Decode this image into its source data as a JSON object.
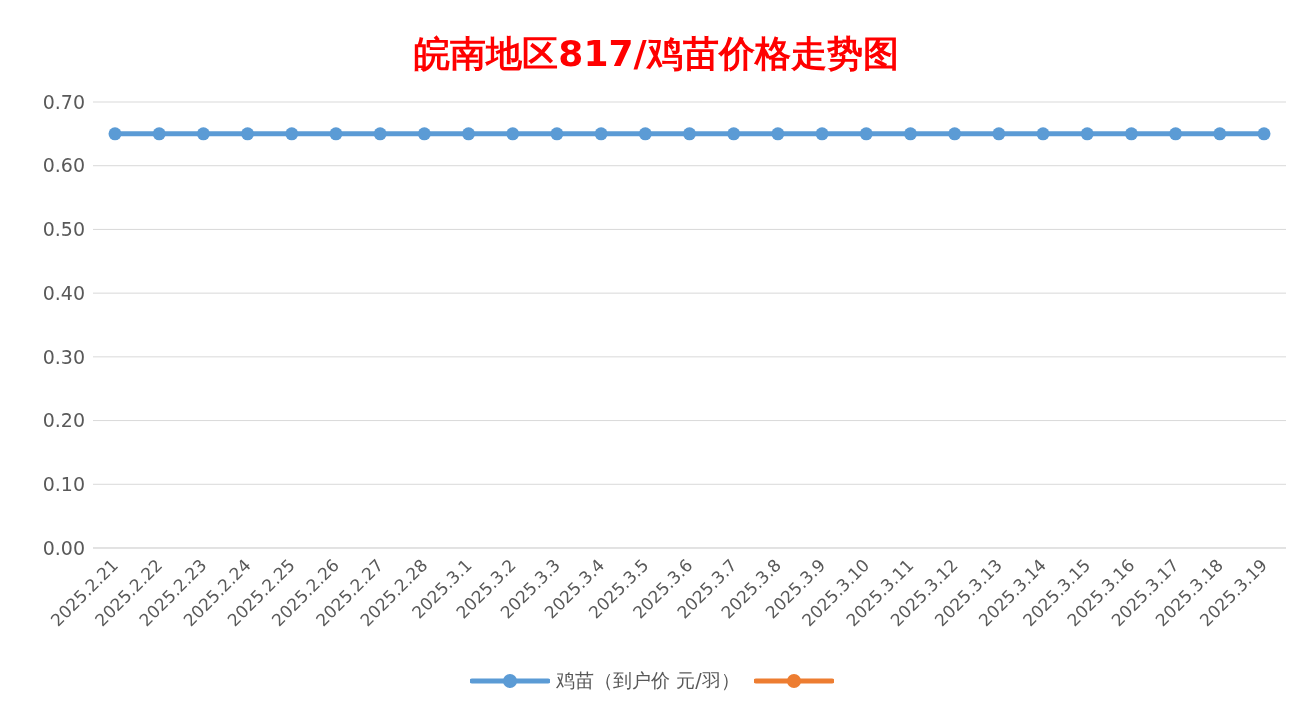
{
  "chart_data": {
    "type": "line",
    "title": "皖南地区817/鸡苗价格走势图",
    "categories": [
      "2025.2.21",
      "2025.2.22",
      "2025.2.23",
      "2025.2.24",
      "2025.2.25",
      "2025.2.26",
      "2025.2.27",
      "2025.2.28",
      "2025.3.1",
      "2025.3.2",
      "2025.3.3",
      "2025.3.4",
      "2025.3.5",
      "2025.3.6",
      "2025.3.7",
      "2025.3.8",
      "2025.3.9",
      "2025.3.10",
      "2025.3.11",
      "2025.3.12",
      "2025.3.13",
      "2025.3.14",
      "2025.3.15",
      "2025.3.16",
      "2025.3.17",
      "2025.3.18",
      "2025.3.19"
    ],
    "series": [
      {
        "name": "鸡苗（到户价 元/羽）",
        "color": "#5b9bd5",
        "values": [
          0.65,
          0.65,
          0.65,
          0.65,
          0.65,
          0.65,
          0.65,
          0.65,
          0.65,
          0.65,
          0.65,
          0.65,
          0.65,
          0.65,
          0.65,
          0.65,
          0.65,
          0.65,
          0.65,
          0.65,
          0.65,
          0.65,
          0.65,
          0.65,
          0.65,
          0.65,
          0.65
        ]
      },
      {
        "color": "#ed7d31",
        "values": [
          null,
          null,
          null,
          null,
          null,
          null,
          null,
          null,
          null,
          null,
          null,
          null,
          null,
          null,
          null,
          null,
          null,
          null,
          null,
          null,
          null,
          null,
          null,
          null,
          null,
          null,
          null
        ]
      }
    ],
    "ylim": [
      0,
      0.7
    ],
    "yticks": [
      {
        "value": 0,
        "label": "0.00"
      },
      {
        "value": 0.1,
        "label": "0.10"
      },
      {
        "value": 0.2,
        "label": "0.20"
      },
      {
        "value": 0.3,
        "label": "0.30"
      },
      {
        "value": 0.4,
        "label": "0.40"
      },
      {
        "value": 0.5,
        "label": "0.50"
      },
      {
        "value": 0.6,
        "label": "0.60"
      },
      {
        "value": 0.7,
        "label": "0.70"
      }
    ],
    "grid": "y",
    "legend": "bottom",
    "marker": "circle",
    "line_style": "solid"
  }
}
